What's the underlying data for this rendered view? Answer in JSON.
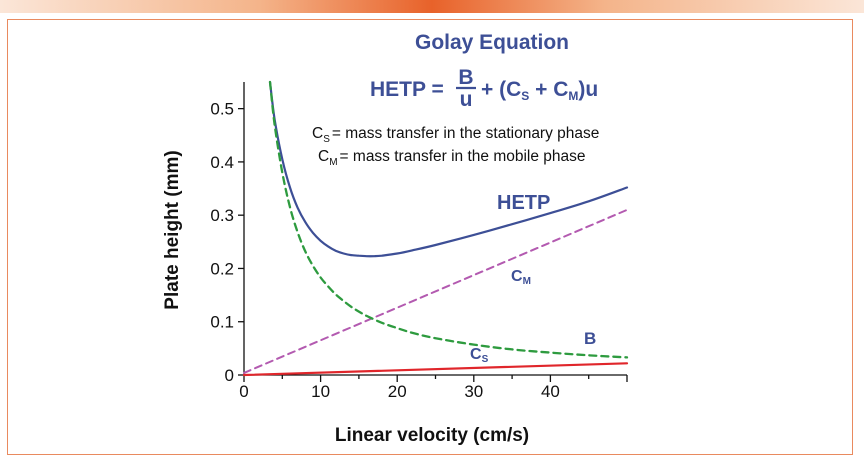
{
  "equation": {
    "title": "Golay Equation",
    "lhs": "HETP =",
    "frac_num": "B",
    "frac_den": "u",
    "rhs_open": "+ (C",
    "sub_s": "S",
    "plus": " + C",
    "sub_m": "M",
    "rhs_close": ")u"
  },
  "definitions": [
    {
      "symbol": "C",
      "sub": "S",
      "text": "= mass transfer in the stationary phase"
    },
    {
      "symbol": "C",
      "sub": "M",
      "text": "= mass transfer in the mobile phase"
    }
  ],
  "chart_data": {
    "type": "line",
    "title": "Golay Equation",
    "xlabel": "Linear velocity (cm/s)",
    "ylabel": "Plate height (mm)",
    "xlim": [
      0,
      50
    ],
    "ylim": [
      0,
      0.55
    ],
    "xticks": [
      0,
      10,
      20,
      30,
      40
    ],
    "xtick_labels": [
      "0",
      "10",
      "20",
      "30",
      "40"
    ],
    "yticks": [
      0,
      0.1,
      0.2,
      0.3,
      0.4,
      0.5
    ],
    "ytick_labels": [
      "0",
      "0.1",
      "0.2",
      "0.3",
      "0.4",
      "0.5"
    ],
    "grid": false,
    "series": [
      {
        "name": "HETP",
        "label": "HETP",
        "color": "#3d4f96",
        "style": "solid",
        "x": [
          3.4,
          4,
          5,
          6,
          7,
          8,
          9,
          10,
          11,
          12,
          13,
          14,
          15,
          16,
          17,
          18,
          20,
          22,
          25,
          30,
          35,
          40,
          45,
          50
        ],
        "y": [
          0.55,
          0.48,
          0.405,
          0.352,
          0.314,
          0.287,
          0.267,
          0.252,
          0.241,
          0.233,
          0.228,
          0.225,
          0.224,
          0.223,
          0.223,
          0.224,
          0.228,
          0.234,
          0.244,
          0.263,
          0.283,
          0.304,
          0.326,
          0.352
        ]
      },
      {
        "name": "C_M",
        "label": "C",
        "label_sub": "M",
        "color": "#b35ab0",
        "style": "dashed",
        "x": [
          0,
          50
        ],
        "y": [
          0.004,
          0.31
        ]
      },
      {
        "name": "B",
        "label": "B",
        "color": "#2e9b3f",
        "style": "dashed",
        "x": [
          3.4,
          4,
          5,
          6,
          7,
          8,
          9,
          10,
          11,
          12,
          13,
          14,
          15,
          16,
          18,
          20,
          22,
          25,
          30,
          35,
          40,
          45,
          50
        ],
        "y": [
          0.55,
          0.47,
          0.38,
          0.315,
          0.268,
          0.232,
          0.205,
          0.183,
          0.166,
          0.151,
          0.139,
          0.128,
          0.119,
          0.111,
          0.098,
          0.088,
          0.079,
          0.069,
          0.057,
          0.048,
          0.042,
          0.037,
          0.033
        ]
      },
      {
        "name": "C_S",
        "label": "C",
        "label_sub": "S",
        "color": "#e0262b",
        "style": "solid",
        "x": [
          0,
          50
        ],
        "y": [
          0.0,
          0.022
        ]
      }
    ]
  }
}
